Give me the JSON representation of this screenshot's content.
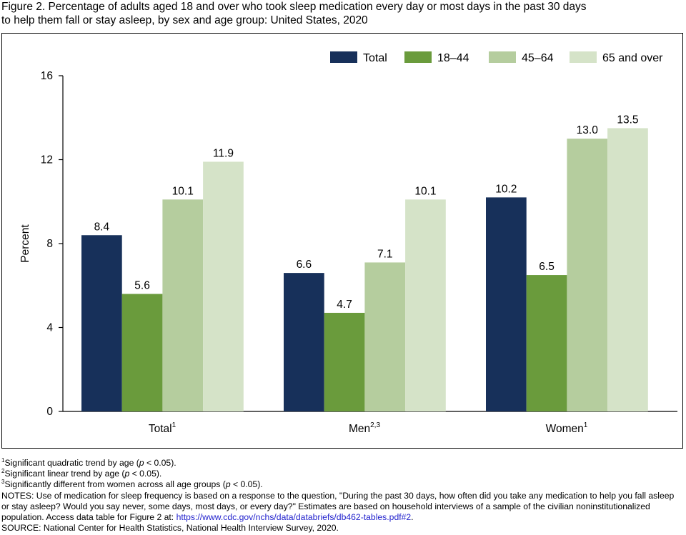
{
  "title_line1": "Figure 2. Percentage of adults aged 18 and over who took sleep medication every day or most days in the past 30 days",
  "title_line2": "to help them fall or stay asleep, by sex and age group: United States, 2020",
  "colors": {
    "total": "#17305a",
    "age_18_44": "#6a9b3c",
    "age_45_64": "#b5cd9e",
    "age_65_over": "#d5e3c8"
  },
  "chart_data": {
    "type": "bar",
    "ylabel": "Percent",
    "xlabel": "",
    "ylim": [
      0,
      16
    ],
    "yticks": [
      0,
      4,
      8,
      12,
      16
    ],
    "grid": false,
    "legend_position": "top-right",
    "categories": [
      {
        "label": "Total",
        "sup": "1"
      },
      {
        "label": "Men",
        "sup": "2,3"
      },
      {
        "label": "Women",
        "sup": "1"
      }
    ],
    "series": [
      {
        "name": "Total",
        "color": "#17305a",
        "values": [
          8.4,
          6.6,
          10.2
        ]
      },
      {
        "name": "18–44",
        "color": "#6a9b3c",
        "values": [
          5.6,
          4.7,
          6.5
        ]
      },
      {
        "name": "45–64",
        "color": "#b5cd9e",
        "values": [
          10.1,
          7.1,
          13.0
        ]
      },
      {
        "name": "65 and over",
        "color": "#d5e3c8",
        "values": [
          11.9,
          10.1,
          13.5
        ]
      }
    ],
    "value_labels": [
      [
        "8.4",
        "6.6",
        "10.2"
      ],
      [
        "5.6",
        "4.7",
        "6.5"
      ],
      [
        "10.1",
        "7.1",
        "13.0"
      ],
      [
        "11.9",
        "10.1",
        "13.5"
      ]
    ]
  },
  "footnotes": {
    "fn1_sup": "1",
    "fn1_a": "Significant quadratic trend by age (",
    "fn1_p": "p",
    "fn1_b": " < 0.05).",
    "fn2_sup": "2",
    "fn2_a": "Significant linear trend by age (",
    "fn2_p": "p",
    "fn2_b": " < 0.05).",
    "fn3_sup": "3",
    "fn3_a": "Significantly different from women across all age groups (",
    "fn3_p": "p",
    "fn3_b": " < 0.05).",
    "notes_text": "NOTES: Use of medication for sleep frequency is based on a response to the question, \"During the past 30 days, how often did you take any medication to help you fall asleep or stay asleep? Would you say never, some days, most days, or every day?\" Estimates are based on household interviews of a sample of the civilian noninstitutionalized population. Access data table for Figure 2 at: ",
    "notes_link": "https://www.cdc.gov/nchs/data/databriefs/db462-tables.pdf#2",
    "notes_end": ".",
    "source": "SOURCE: National Center for Health Statistics, National Health Interview Survey, 2020."
  }
}
